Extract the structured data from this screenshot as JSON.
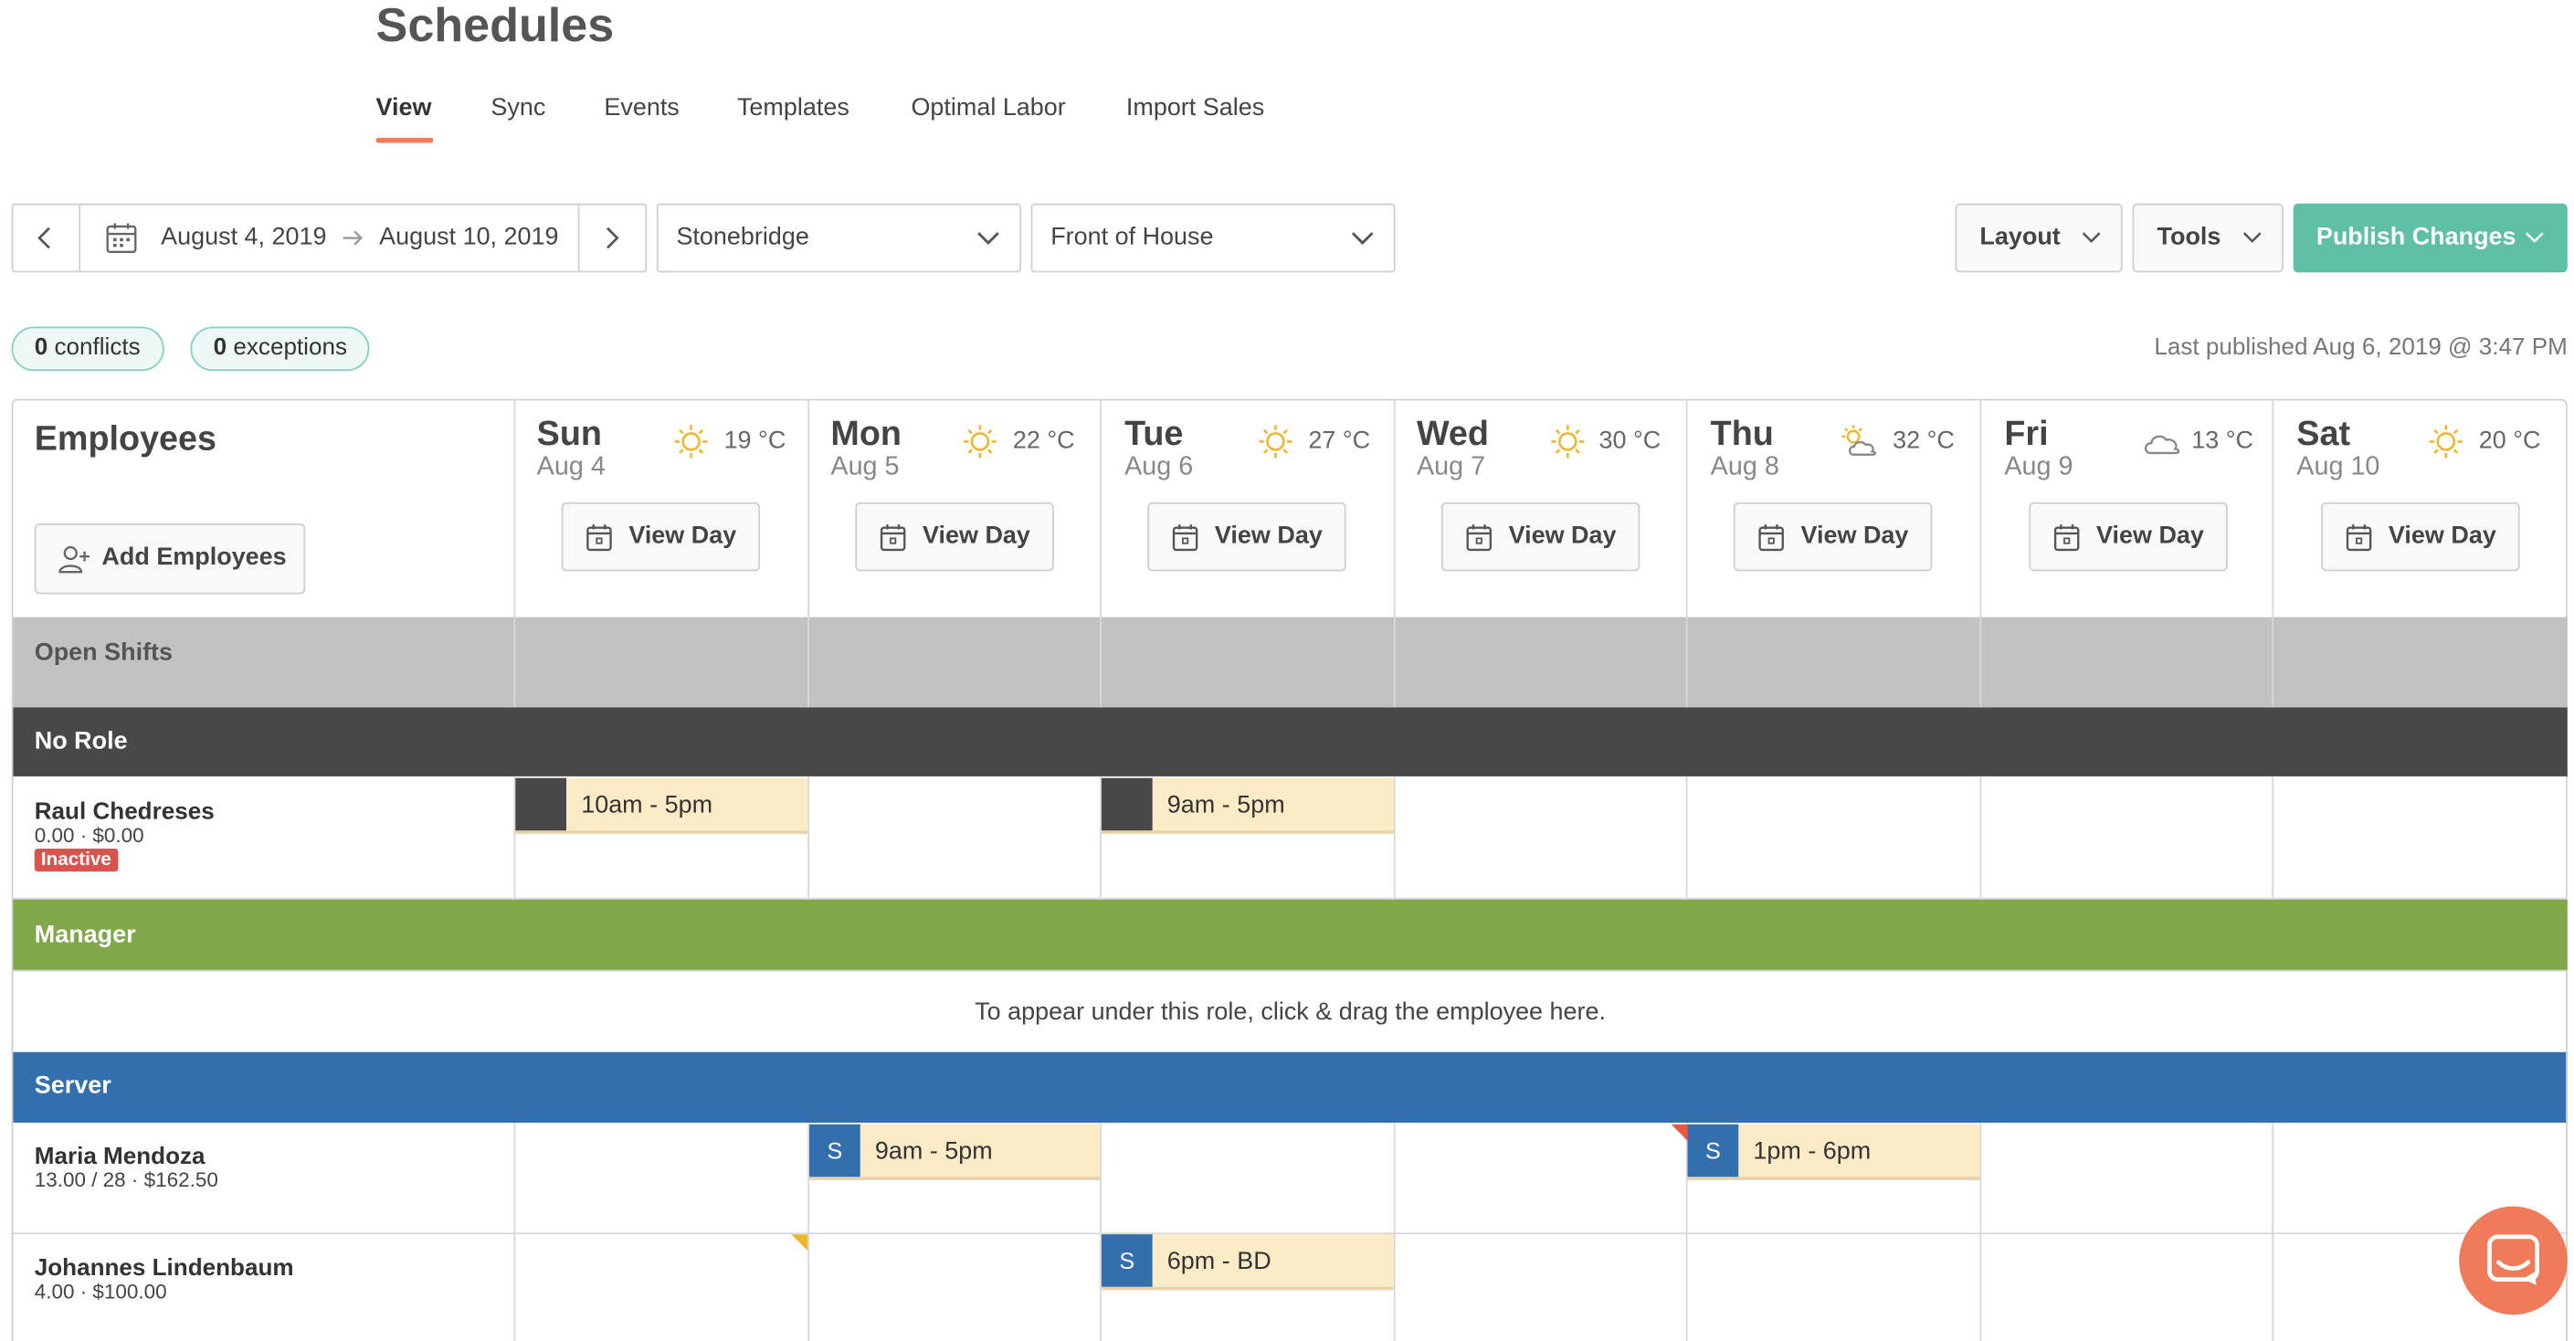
{
  "page_title": "Schedules",
  "tabs": [
    {
      "label": "View",
      "active": true
    },
    {
      "label": "Sync"
    },
    {
      "label": "Events"
    },
    {
      "label": "Templates"
    },
    {
      "label": "Optimal Labor"
    },
    {
      "label": "Import Sales"
    }
  ],
  "toolbar": {
    "date_start": "August 4, 2019",
    "date_end": "August 10, 2019",
    "location": "Stonebridge",
    "department": "Front of House",
    "layout_label": "Layout",
    "tools_label": "Tools",
    "publish_label": "Publish Changes"
  },
  "status": {
    "conflicts_count": "0",
    "conflicts_label": "conflicts",
    "exceptions_count": "0",
    "exceptions_label": "exceptions",
    "last_published": "Last published Aug 6, 2019 @ 3:47 PM"
  },
  "employees_header": "Employees",
  "add_employees_label": "Add Employees",
  "days": [
    {
      "day": "Sun",
      "date": "Aug 4",
      "temp": "19 °C",
      "weather": "sun-icon",
      "view_label": "View Day"
    },
    {
      "day": "Mon",
      "date": "Aug 5",
      "temp": "22 °C",
      "weather": "sun-icon",
      "view_label": "View Day"
    },
    {
      "day": "Tue",
      "date": "Aug 6",
      "temp": "27 °C",
      "weather": "sun-icon",
      "view_label": "View Day"
    },
    {
      "day": "Wed",
      "date": "Aug 7",
      "temp": "30 °C",
      "weather": "sun-icon",
      "view_label": "View Day"
    },
    {
      "day": "Thu",
      "date": "Aug 8",
      "temp": "32 °C",
      "weather": "partly-cloudy-icon",
      "view_label": "View Day"
    },
    {
      "day": "Fri",
      "date": "Aug 9",
      "temp": "13 °C",
      "weather": "cloud-icon",
      "view_label": "View Day"
    },
    {
      "day": "Sat",
      "date": "Aug 10",
      "temp": "20 °C",
      "weather": "sun-icon",
      "view_label": "View Day"
    }
  ],
  "sections": {
    "open_shifts": "Open Shifts",
    "no_role": "No Role",
    "manager": "Manager",
    "manager_hint": "To appear under this role, click & drag the employee here.",
    "server": "Server"
  },
  "employees": [
    {
      "name": "Raul Chedreses",
      "meta": "0.00 · $0.00",
      "badge": "Inactive"
    },
    {
      "name": "Maria Mendoza",
      "meta": "13.00 / 28 · $162.50"
    },
    {
      "name": "Johannes Lindenbaum",
      "meta": "4.00 · $100.00"
    }
  ],
  "shifts": {
    "raul_sun": {
      "time": "10am - 5pm"
    },
    "raul_tue": {
      "time": "9am - 5pm"
    },
    "maria_mon": {
      "tag": "S",
      "time": "9am - 5pm"
    },
    "maria_thu": {
      "tag": "S",
      "time": "1pm - 6pm"
    },
    "johannes_tue": {
      "tag": "S",
      "time": "6pm - BD"
    }
  },
  "colors": {
    "accent": "#f07b5a",
    "publish": "#5fbfa5",
    "open_shifts_band": "#c2c2c2",
    "no_role_band": "#484848",
    "manager_band": "#80a74a",
    "server_band": "#346fad",
    "shift_fill": "#fcebc7",
    "inactive_badge": "#d9534f"
  }
}
